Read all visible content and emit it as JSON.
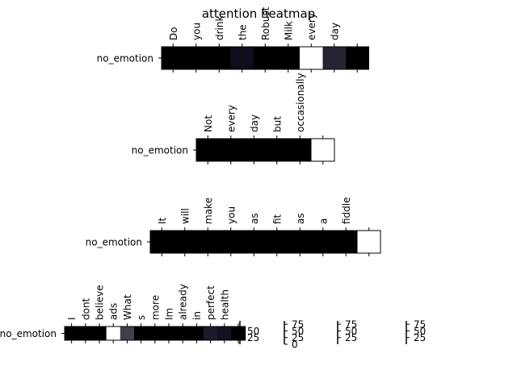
{
  "chart_data": [
    {
      "type": "heatmap",
      "title": "attention heatmap",
      "row_label": "no_emotion",
      "tokens": [
        "Do",
        "you",
        "drink",
        "the",
        "Robust",
        "Milk",
        "every",
        "day",
        ""
      ],
      "values": [
        0,
        0,
        0,
        5,
        0,
        0,
        100,
        14,
        0
      ],
      "colorbar_ticks": [
        25,
        50
      ]
    },
    {
      "type": "heatmap",
      "row_label": "no_emotion",
      "tokens": [
        "Not",
        "every",
        "day",
        "but",
        "occasionally",
        ""
      ],
      "values": [
        0,
        0,
        0,
        0,
        0,
        100
      ],
      "colorbar_ticks": [
        0,
        25,
        50,
        75
      ]
    },
    {
      "type": "heatmap",
      "row_label": "no_emotion",
      "tokens": [
        "It",
        "will",
        "make",
        "you",
        "as",
        "fit",
        "as",
        "a",
        "fiddle",
        ""
      ],
      "values": [
        0,
        0,
        0,
        0,
        0,
        0,
        0,
        0,
        0,
        100
      ],
      "colorbar_ticks": [
        25,
        50,
        75
      ]
    },
    {
      "type": "heatmap",
      "row_label": "no_emotion",
      "tokens": [
        "I",
        "dont",
        "believe",
        "ads",
        "What",
        "s",
        "more",
        "Im",
        "already",
        "in",
        "perfect",
        "health",
        ""
      ],
      "values": [
        0,
        0,
        0,
        100,
        25,
        0,
        0,
        0,
        0,
        0,
        10,
        7,
        0
      ],
      "colorbar_ticks": [
        25,
        50,
        75
      ]
    }
  ]
}
